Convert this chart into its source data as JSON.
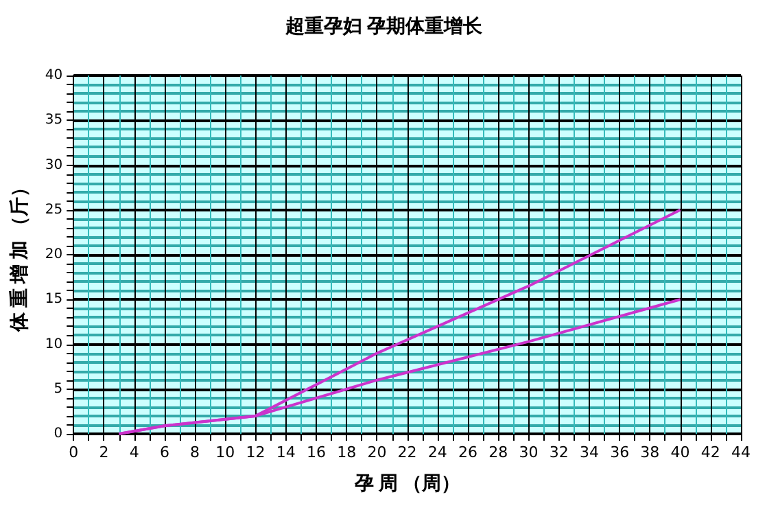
{
  "chart_data": {
    "type": "line",
    "title": "超重孕妇 孕期体重增长",
    "xlabel": "孕 周 （周）",
    "ylabel": "体 重 增 加 （斤）",
    "x": [
      3,
      6,
      12,
      20,
      30,
      40
    ],
    "series": [
      {
        "color": "#cc33cc",
        "values": [
          0,
          0.9,
          2,
          9,
          16.5,
          25
        ]
      },
      {
        "color": "#cc33cc",
        "values": [
          0,
          0.9,
          2,
          6,
          10.3,
          15
        ]
      }
    ],
    "xlim": [
      0,
      44
    ],
    "xticks": [
      0,
      {
        "value": 1,
        "label": null
      },
      2,
      {
        "value": 3,
        "label": null
      },
      4,
      {
        "value": 5,
        "label": null
      },
      6,
      {
        "value": 7,
        "label": null
      },
      8,
      {
        "value": 9,
        "label": null
      },
      10,
      {
        "value": 11,
        "label": null
      },
      12,
      {
        "value": 13,
        "label": null
      },
      14,
      {
        "value": 15,
        "label": null
      },
      16,
      {
        "value": 17,
        "label": null
      },
      18,
      {
        "value": 19,
        "label": null
      },
      20,
      {
        "value": 21,
        "label": null
      },
      22,
      {
        "value": 23,
        "label": null
      },
      24,
      {
        "value": 25,
        "label": null
      },
      26,
      {
        "value": 27,
        "label": null
      },
      28,
      {
        "value": 29,
        "label": null
      },
      30,
      {
        "value": 31,
        "label": null
      },
      32,
      {
        "value": 33,
        "label": null
      },
      34,
      {
        "value": 35,
        "label": null
      },
      36,
      {
        "value": 37,
        "label": null
      },
      38,
      {
        "value": 39,
        "label": null
      },
      40,
      {
        "value": 41,
        "label": null
      },
      42,
      {
        "value": 43,
        "label": null
      },
      44
    ],
    "ylim": [
      0,
      40
    ],
    "yticks": [
      0,
      {
        "value": 1,
        "label": null
      },
      {
        "value": 2,
        "label": null
      },
      {
        "value": 3,
        "label": null
      },
      {
        "value": 4,
        "label": null
      },
      5,
      {
        "value": 6,
        "label": null
      },
      {
        "value": 7,
        "label": null
      },
      {
        "value": 8,
        "label": null
      },
      {
        "value": 9,
        "label": null
      },
      10,
      {
        "value": 11,
        "label": null
      },
      {
        "value": 12,
        "label": null
      },
      {
        "value": 13,
        "label": null
      },
      {
        "value": 14,
        "label": null
      },
      15,
      {
        "value": 16,
        "label": null
      },
      {
        "value": 17,
        "label": null
      },
      {
        "value": 18,
        "label": null
      },
      {
        "value": 19,
        "label": null
      },
      20,
      {
        "value": 21,
        "label": null
      },
      {
        "value": 22,
        "label": null
      },
      {
        "value": 23,
        "label": null
      },
      {
        "value": 24,
        "label": null
      },
      25,
      {
        "value": 26,
        "label": null
      },
      {
        "value": 27,
        "label": null
      },
      {
        "value": 28,
        "label": null
      },
      {
        "value": 29,
        "label": null
      },
      30,
      {
        "value": 31,
        "label": null
      },
      {
        "value": 32,
        "label": null
      },
      {
        "value": 33,
        "label": null
      },
      {
        "value": 34,
        "label": null
      },
      35,
      {
        "value": 36,
        "label": null
      },
      {
        "value": 37,
        "label": null
      },
      {
        "value": 38,
        "label": null
      },
      {
        "value": 39,
        "label": null
      },
      40
    ],
    "grid": true,
    "marker": "none",
    "line_style": "solid"
  }
}
